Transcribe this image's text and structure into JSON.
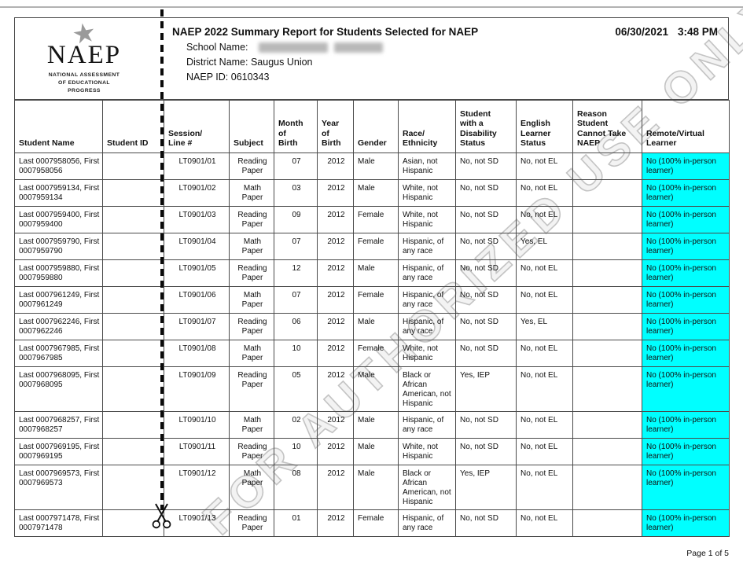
{
  "page": {
    "watermark_text": "FOR AUTHORIZED USE ONLY",
    "footer_page_label": "Page 1 of 5"
  },
  "header": {
    "logo_acronym": "NAEP",
    "logo_subtitle": "NATIONAL ASSESSMENT\nOF EDUCATIONAL\nPROGRESS",
    "star_icon": "star-icon",
    "title": "NAEP 2022 Summary Report for Students Selected for NAEP",
    "date": "06/30/2021",
    "time": "3:48 PM",
    "school_name_label": "School Name:",
    "district_name_label": "District Name:",
    "district_name_value": "Saugus Union",
    "naep_id_label": "NAEP ID:",
    "naep_id_value": "0610343"
  },
  "table": {
    "columns": [
      "Student Name",
      "Student ID",
      "Session/\nLine #",
      "Subject",
      "Month\nof\nBirth",
      "Year\nof\nBirth",
      "Gender",
      "Race/\nEthnicity",
      "Student\nwith a\nDisability\nStatus",
      "English\nLearner\nStatus",
      "Reason\nStudent\nCannot Take\nNAEP",
      "Remote/Virtual\nLearner"
    ],
    "rows": [
      [
        "Last 0007958056, First 0007958056",
        "",
        "LT0901/01",
        "Reading\nPaper",
        "07",
        "2012",
        "Male",
        "Asian, not Hispanic",
        "No, not SD",
        "No, not EL",
        "",
        "No (100% in-person learner)"
      ],
      [
        "Last 0007959134, First 0007959134",
        "",
        "LT0901/02",
        "Math\nPaper",
        "03",
        "2012",
        "Male",
        "White, not Hispanic",
        "No, not SD",
        "No, not EL",
        "",
        "No (100% in-person learner)"
      ],
      [
        "Last 0007959400, First 0007959400",
        "",
        "LT0901/03",
        "Reading\nPaper",
        "09",
        "2012",
        "Female",
        "White, not Hispanic",
        "No, not SD",
        "No, not EL",
        "",
        "No (100% in-person learner)"
      ],
      [
        "Last 0007959790, First 0007959790",
        "",
        "LT0901/04",
        "Math\nPaper",
        "07",
        "2012",
        "Female",
        "Hispanic, of any race",
        "No, not SD",
        "Yes, EL",
        "",
        "No (100% in-person learner)"
      ],
      [
        "Last 0007959880, First 0007959880",
        "",
        "LT0901/05",
        "Reading\nPaper",
        "12",
        "2012",
        "Male",
        "Hispanic, of any race",
        "No, not SD",
        "No, not EL",
        "",
        "No (100% in-person learner)"
      ],
      [
        "Last 0007961249, First 0007961249",
        "",
        "LT0901/06",
        "Math\nPaper",
        "07",
        "2012",
        "Female",
        "Hispanic, of any race",
        "No, not SD",
        "No, not EL",
        "",
        "No (100% in-person learner)"
      ],
      [
        "Last 0007962246, First 0007962246",
        "",
        "LT0901/07",
        "Reading\nPaper",
        "06",
        "2012",
        "Male",
        "Hispanic, of any race",
        "No, not SD",
        "Yes, EL",
        "",
        "No (100% in-person learner)"
      ],
      [
        "Last 0007967985, First 0007967985",
        "",
        "LT0901/08",
        "Math\nPaper",
        "10",
        "2012",
        "Female",
        "White, not Hispanic",
        "No, not SD",
        "No, not EL",
        "",
        "No (100% in-person learner)"
      ],
      [
        "Last 0007968095, First 0007968095",
        "",
        "LT0901/09",
        "Reading\nPaper",
        "05",
        "2012",
        "Male",
        "Black or African American, not Hispanic",
        "Yes, IEP",
        "No, not EL",
        "",
        "No (100% in-person learner)"
      ],
      [
        "Last 0007968257, First 0007968257",
        "",
        "LT0901/10",
        "Math\nPaper",
        "02",
        "2012",
        "Male",
        "Hispanic, of any race",
        "No, not SD",
        "No, not EL",
        "",
        "No (100% in-person learner)"
      ],
      [
        "Last 0007969195, First 0007969195",
        "",
        "LT0901/11",
        "Reading\nPaper",
        "10",
        "2012",
        "Male",
        "White, not Hispanic",
        "No, not SD",
        "No, not EL",
        "",
        "No (100% in-person learner)"
      ],
      [
        "Last 0007969573, First 0007969573",
        "",
        "LT0901/12",
        "Math\nPaper",
        "08",
        "2012",
        "Male",
        "Black or African American, not Hispanic",
        "Yes, IEP",
        "No, not EL",
        "",
        "No (100% in-person learner)"
      ],
      [
        "Last 0007971478, First 0007971478",
        "",
        "LT0901/13",
        "Reading\nPaper",
        "01",
        "2012",
        "Female",
        "Hispanic, of any race",
        "No, not SD",
        "No, not EL",
        "",
        "No (100% in-person learner)"
      ]
    ]
  },
  "colors": {
    "remote_learner_highlight": "#00ffff"
  }
}
